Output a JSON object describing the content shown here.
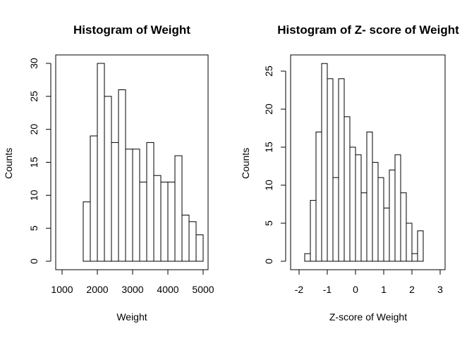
{
  "chart_data": [
    {
      "type": "bar",
      "title": "Histogram of Weight",
      "xlabel": "Weight",
      "ylabel": "Counts",
      "bin_edges": [
        1600,
        1800,
        2000,
        2200,
        2400,
        2600,
        2800,
        3000,
        3200,
        3400,
        3600,
        3800,
        4000,
        4200,
        4400,
        4600,
        4800,
        5000
      ],
      "values": [
        9,
        19,
        30,
        25,
        18,
        26,
        17,
        17,
        12,
        18,
        13,
        12,
        12,
        16,
        7,
        6,
        4
      ],
      "xlim": [
        800,
        5200
      ],
      "ylim": [
        0,
        32
      ],
      "xticks": [
        1000,
        2000,
        3000,
        4000,
        5000
      ],
      "yticks": [
        0,
        5,
        10,
        15,
        20,
        25,
        30
      ],
      "grid": false
    },
    {
      "type": "bar",
      "title": "Histogram of Z- score of Weight",
      "xlabel": "Z-score of Weight",
      "ylabel": "Counts",
      "bin_edges": [
        -1.8,
        -1.6,
        -1.4,
        -1.2,
        -1.0,
        -0.8,
        -0.6,
        -0.4,
        -0.2,
        0.0,
        0.2,
        0.4,
        0.6,
        0.8,
        1.0,
        1.2,
        1.4,
        1.6,
        1.8,
        2.0,
        2.2,
        2.4
      ],
      "values": [
        1,
        8,
        17,
        26,
        24,
        11,
        24,
        19,
        15,
        14,
        9,
        17,
        13,
        11,
        7,
        12,
        14,
        9,
        5,
        1,
        4
      ],
      "xlim": [
        -2.2,
        3.2
      ],
      "ylim": [
        0,
        27
      ],
      "xticks": [
        -2,
        -1,
        0,
        1,
        2,
        3
      ],
      "yticks": [
        0,
        5,
        10,
        15,
        20,
        25
      ],
      "grid": false
    }
  ]
}
